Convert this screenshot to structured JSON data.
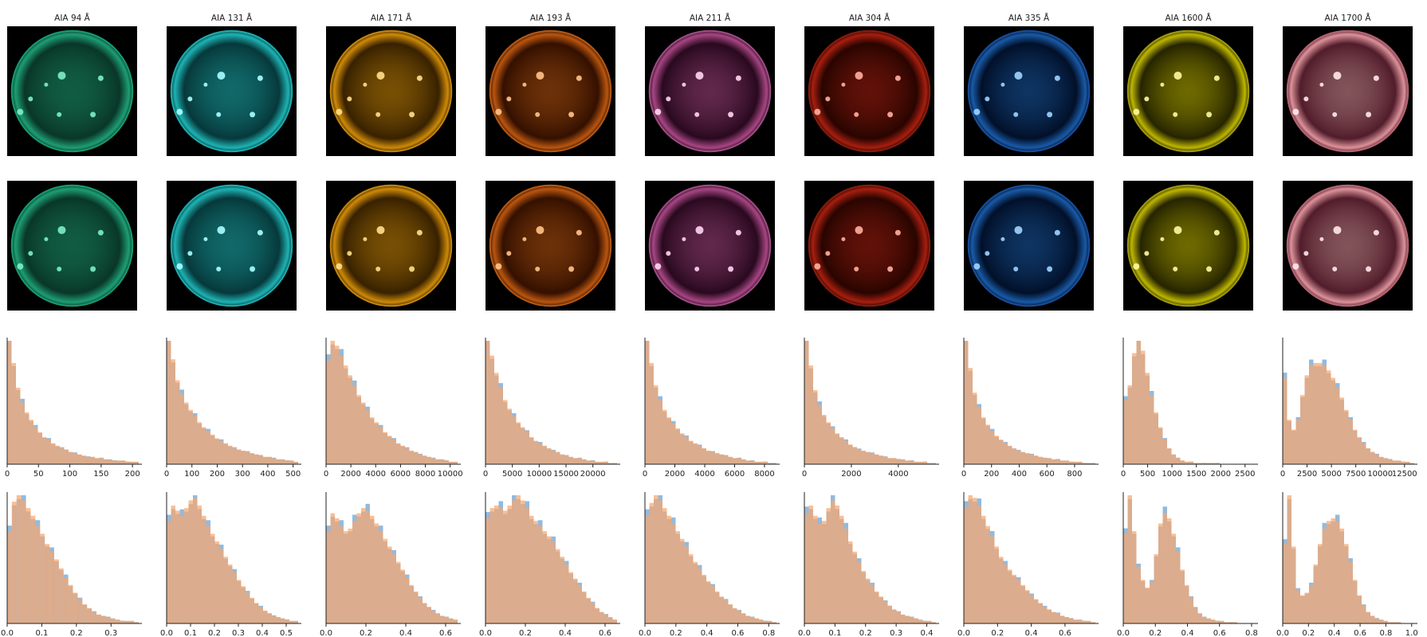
{
  "chart_data": {
    "type": "bar",
    "colors": {
      "series_a": "#6fa3d2",
      "series_b": "#f7a66e",
      "overlap": "#c99a82"
    },
    "columns": [
      {
        "title": "AIA 94 Å",
        "sun_colormap": [
          "#7cf0c8",
          "#1fa67a",
          "#0a3d2c"
        ],
        "limb_color": "#18b080",
        "hist_raw": {
          "xticks": [
            "0",
            "50",
            "100",
            "150",
            "200"
          ],
          "xlim": [
            0,
            210
          ],
          "values": [
            1.0,
            0.82,
            0.62,
            0.5,
            0.42,
            0.36,
            0.3,
            0.26,
            0.22,
            0.2,
            0.17,
            0.15,
            0.13,
            0.12,
            0.1,
            0.09,
            0.08,
            0.07,
            0.06,
            0.06,
            0.05,
            0.05,
            0.04,
            0.04,
            0.03,
            0.03,
            0.03,
            0.02,
            0.02,
            0.02
          ]
        },
        "hist_norm": {
          "xticks": [
            "0.0",
            "0.1",
            "0.2",
            "0.3"
          ],
          "xlim": [
            0,
            0.38
          ],
          "values": [
            0.72,
            0.95,
            1.0,
            0.96,
            0.9,
            0.84,
            0.76,
            0.7,
            0.62,
            0.56,
            0.5,
            0.43,
            0.36,
            0.3,
            0.24,
            0.19,
            0.15,
            0.12,
            0.09,
            0.07,
            0.06,
            0.05,
            0.04,
            0.03,
            0.02,
            0.02,
            0.02,
            0.01
          ]
        }
      },
      {
        "title": "AIA 131 Å",
        "sun_colormap": [
          "#a8ffff",
          "#1fbcbc",
          "#073f42"
        ],
        "limb_color": "#22c4c4",
        "hist_raw": {
          "xticks": [
            "0",
            "100",
            "200",
            "300",
            "400",
            "500"
          ],
          "xlim": [
            0,
            520
          ],
          "values": [
            1.0,
            0.85,
            0.68,
            0.57,
            0.5,
            0.44,
            0.39,
            0.34,
            0.3,
            0.27,
            0.24,
            0.21,
            0.19,
            0.17,
            0.15,
            0.13,
            0.12,
            0.11,
            0.1,
            0.09,
            0.08,
            0.07,
            0.06,
            0.06,
            0.05,
            0.04,
            0.04,
            0.03,
            0.03,
            0.02
          ]
        },
        "hist_norm": {
          "xticks": [
            "0.0",
            "0.1",
            "0.2",
            "0.3",
            "0.4",
            "0.5"
          ],
          "xlim": [
            0,
            0.55
          ],
          "values": [
            0.8,
            0.92,
            0.88,
            0.84,
            0.9,
            0.96,
            0.98,
            0.92,
            0.84,
            0.76,
            0.7,
            0.64,
            0.58,
            0.52,
            0.46,
            0.4,
            0.34,
            0.29,
            0.24,
            0.2,
            0.16,
            0.13,
            0.1,
            0.08,
            0.06,
            0.05,
            0.04,
            0.03,
            0.02,
            0.02
          ]
        }
      },
      {
        "title": "AIA 171 Å",
        "sun_colormap": [
          "#ffe08a",
          "#d99108",
          "#3e2500"
        ],
        "limb_color": "#e09a10",
        "hist_raw": {
          "xticks": [
            "0",
            "2000",
            "4000",
            "6000",
            "8000",
            "10000"
          ],
          "xlim": [
            0,
            10600
          ],
          "values": [
            0.84,
            1.0,
            0.96,
            0.88,
            0.8,
            0.72,
            0.64,
            0.56,
            0.5,
            0.44,
            0.38,
            0.34,
            0.3,
            0.26,
            0.23,
            0.2,
            0.17,
            0.15,
            0.13,
            0.11,
            0.1,
            0.08,
            0.07,
            0.06,
            0.05,
            0.04,
            0.04,
            0.03,
            0.02,
            0.02
          ]
        },
        "hist_norm": {
          "xticks": [
            "0.0",
            "0.2",
            "0.4",
            "0.6"
          ],
          "xlim": [
            0,
            0.66
          ],
          "values": [
            0.72,
            0.86,
            0.82,
            0.76,
            0.72,
            0.74,
            0.8,
            0.86,
            0.9,
            0.88,
            0.84,
            0.78,
            0.72,
            0.66,
            0.6,
            0.54,
            0.48,
            0.42,
            0.36,
            0.3,
            0.25,
            0.2,
            0.16,
            0.13,
            0.1,
            0.08,
            0.06,
            0.05,
            0.04,
            0.03
          ]
        }
      },
      {
        "title": "AIA 193 Å",
        "sun_colormap": [
          "#ffc48a",
          "#c35a10",
          "#3a1200"
        ],
        "limb_color": "#d06818",
        "hist_raw": {
          "xticks": [
            "0",
            "5000",
            "10000",
            "15000",
            "20000"
          ],
          "xlim": [
            0,
            24500
          ],
          "values": [
            1.0,
            0.88,
            0.74,
            0.62,
            0.52,
            0.45,
            0.39,
            0.34,
            0.3,
            0.26,
            0.22,
            0.19,
            0.17,
            0.15,
            0.13,
            0.11,
            0.1,
            0.08,
            0.07,
            0.06,
            0.05,
            0.05,
            0.04,
            0.03,
            0.03,
            0.02,
            0.02,
            0.02,
            0.01,
            0.01
          ]
        },
        "hist_norm": {
          "xticks": [
            "0.0",
            "0.2",
            "0.4",
            "0.6"
          ],
          "xlim": [
            0,
            0.66
          ],
          "values": [
            0.82,
            0.9,
            0.92,
            0.9,
            0.88,
            0.92,
            0.96,
            1.0,
            0.96,
            0.9,
            0.84,
            0.8,
            0.76,
            0.72,
            0.68,
            0.64,
            0.58,
            0.52,
            0.46,
            0.4,
            0.35,
            0.3,
            0.25,
            0.2,
            0.16,
            0.12,
            0.09,
            0.07,
            0.05,
            0.03
          ]
        }
      },
      {
        "title": "AIA 211 Å",
        "sun_colormap": [
          "#ffd6f0",
          "#b04a8a",
          "#2e0a22"
        ],
        "limb_color": "#b85a98",
        "hist_raw": {
          "xticks": [
            "0",
            "2000",
            "4000",
            "6000",
            "8000"
          ],
          "xlim": [
            0,
            8800
          ],
          "values": [
            1.0,
            0.82,
            0.64,
            0.52,
            0.44,
            0.38,
            0.33,
            0.29,
            0.25,
            0.22,
            0.19,
            0.17,
            0.15,
            0.13,
            0.11,
            0.1,
            0.09,
            0.08,
            0.07,
            0.06,
            0.05,
            0.05,
            0.04,
            0.03,
            0.03,
            0.02,
            0.02,
            0.02,
            0.01,
            0.01
          ]
        },
        "hist_norm": {
          "xticks": [
            "0.0",
            "0.2",
            "0.4",
            "0.6",
            "0.8"
          ],
          "xlim": [
            0,
            0.85
          ],
          "values": [
            0.84,
            0.94,
            1.0,
            0.96,
            0.9,
            0.84,
            0.78,
            0.72,
            0.66,
            0.6,
            0.54,
            0.48,
            0.43,
            0.38,
            0.33,
            0.29,
            0.25,
            0.21,
            0.18,
            0.15,
            0.12,
            0.1,
            0.08,
            0.06,
            0.05,
            0.04,
            0.03,
            0.02,
            0.02,
            0.01
          ]
        }
      },
      {
        "title": "AIA 304 Å",
        "sun_colormap": [
          "#ffb0a0",
          "#b02010",
          "#2e0500"
        ],
        "limb_color": "#9a2010",
        "hist_raw": {
          "xticks": [
            "0",
            "2000",
            "4000"
          ],
          "xlim": [
            0,
            5600
          ],
          "values": [
            1.0,
            0.8,
            0.6,
            0.48,
            0.4,
            0.34,
            0.29,
            0.25,
            0.22,
            0.19,
            0.16,
            0.14,
            0.12,
            0.11,
            0.1,
            0.09,
            0.08,
            0.07,
            0.06,
            0.05,
            0.05,
            0.04,
            0.04,
            0.03,
            0.03,
            0.02,
            0.02,
            0.02,
            0.01,
            0.01
          ]
        },
        "hist_norm": {
          "xticks": [
            "0.0",
            "0.1",
            "0.2",
            "0.3",
            "0.4"
          ],
          "xlim": [
            0,
            0.43
          ],
          "values": [
            0.86,
            0.92,
            0.84,
            0.78,
            0.8,
            0.9,
            0.96,
            0.92,
            0.84,
            0.74,
            0.64,
            0.56,
            0.48,
            0.41,
            0.35,
            0.3,
            0.25,
            0.21,
            0.17,
            0.14,
            0.11,
            0.09,
            0.07,
            0.06,
            0.05,
            0.04,
            0.03,
            0.02,
            0.02,
            0.01
          ]
        }
      },
      {
        "title": "AIA 335 Å",
        "sun_colormap": [
          "#a0d4ff",
          "#1a5fb0",
          "#02122e"
        ],
        "limb_color": "#1e5ab4",
        "hist_raw": {
          "xticks": [
            "0",
            "200",
            "400",
            "600",
            "800"
          ],
          "xlim": [
            0,
            950
          ],
          "values": [
            1.0,
            0.78,
            0.58,
            0.46,
            0.38,
            0.32,
            0.27,
            0.23,
            0.2,
            0.17,
            0.15,
            0.13,
            0.11,
            0.1,
            0.09,
            0.08,
            0.07,
            0.06,
            0.05,
            0.05,
            0.04,
            0.04,
            0.03,
            0.03,
            0.02,
            0.02,
            0.02,
            0.01,
            0.01,
            0.01
          ]
        },
        "hist_norm": {
          "xticks": [
            "0.0",
            "0.2",
            "0.4",
            "0.6"
          ],
          "xlim": [
            0,
            0.78
          ],
          "values": [
            0.9,
            1.0,
            0.98,
            0.92,
            0.84,
            0.76,
            0.68,
            0.6,
            0.52,
            0.46,
            0.42,
            0.38,
            0.34,
            0.3,
            0.26,
            0.22,
            0.19,
            0.16,
            0.13,
            0.11,
            0.09,
            0.08,
            0.06,
            0.05,
            0.04,
            0.03,
            0.03,
            0.02,
            0.02,
            0.01
          ]
        }
      },
      {
        "title": "AIA 1600 Å",
        "sun_colormap": [
          "#fffaa0",
          "#c8c000",
          "#2a2800"
        ],
        "limb_color": "#b8b010",
        "hist_raw": {
          "xticks": [
            "0",
            "500",
            "1000",
            "1500",
            "2000",
            "2500"
          ],
          "xlim": [
            0,
            2700
          ],
          "values": [
            0.52,
            0.64,
            0.9,
            1.0,
            0.92,
            0.74,
            0.56,
            0.42,
            0.3,
            0.2,
            0.13,
            0.08,
            0.05,
            0.03,
            0.02,
            0.02,
            0.01,
            0.01,
            0.01,
            0.01,
            0.01,
            0.01,
            0.0,
            0.0,
            0.0,
            0.0,
            0.0,
            0.0,
            0.0,
            0.0
          ]
        },
        "hist_norm": {
          "xticks": [
            "0.0",
            "0.2",
            "0.4",
            "0.6",
            "0.8"
          ],
          "xlim": [
            0,
            0.82
          ],
          "values": [
            0.7,
            1.0,
            0.72,
            0.44,
            0.34,
            0.28,
            0.32,
            0.54,
            0.78,
            0.86,
            0.82,
            0.7,
            0.56,
            0.42,
            0.3,
            0.2,
            0.13,
            0.08,
            0.05,
            0.04,
            0.03,
            0.02,
            0.02,
            0.01,
            0.01,
            0.01,
            0.0,
            0.0,
            0.0,
            0.0
          ]
        }
      },
      {
        "title": "AIA 1700 Å",
        "sun_colormap": [
          "#ffe8ec",
          "#e89aa2",
          "#5a2030"
        ],
        "limb_color": "#c87080",
        "hist_raw": {
          "xticks": [
            "0",
            "2500",
            "5000",
            "7500",
            "10000",
            "12500"
          ],
          "xlim": [
            0,
            13500
          ],
          "values": [
            0.7,
            0.36,
            0.28,
            0.36,
            0.56,
            0.72,
            0.8,
            0.82,
            0.82,
            0.8,
            0.76,
            0.7,
            0.62,
            0.54,
            0.44,
            0.36,
            0.28,
            0.22,
            0.17,
            0.13,
            0.1,
            0.08,
            0.06,
            0.05,
            0.04,
            0.03,
            0.03,
            0.02,
            0.02,
            0.01
          ]
        },
        "hist_norm": {
          "xticks": [
            "0.0",
            "0.2",
            "0.4",
            "0.6",
            "0.8",
            "1.0"
          ],
          "xlim": [
            0,
            1.02
          ],
          "values": [
            0.62,
            1.0,
            0.6,
            0.26,
            0.22,
            0.24,
            0.3,
            0.46,
            0.62,
            0.74,
            0.8,
            0.82,
            0.8,
            0.74,
            0.62,
            0.48,
            0.34,
            0.22,
            0.14,
            0.09,
            0.06,
            0.04,
            0.03,
            0.02,
            0.01,
            0.01,
            0.01,
            0.0,
            0.0,
            0.0
          ]
        }
      }
    ]
  }
}
